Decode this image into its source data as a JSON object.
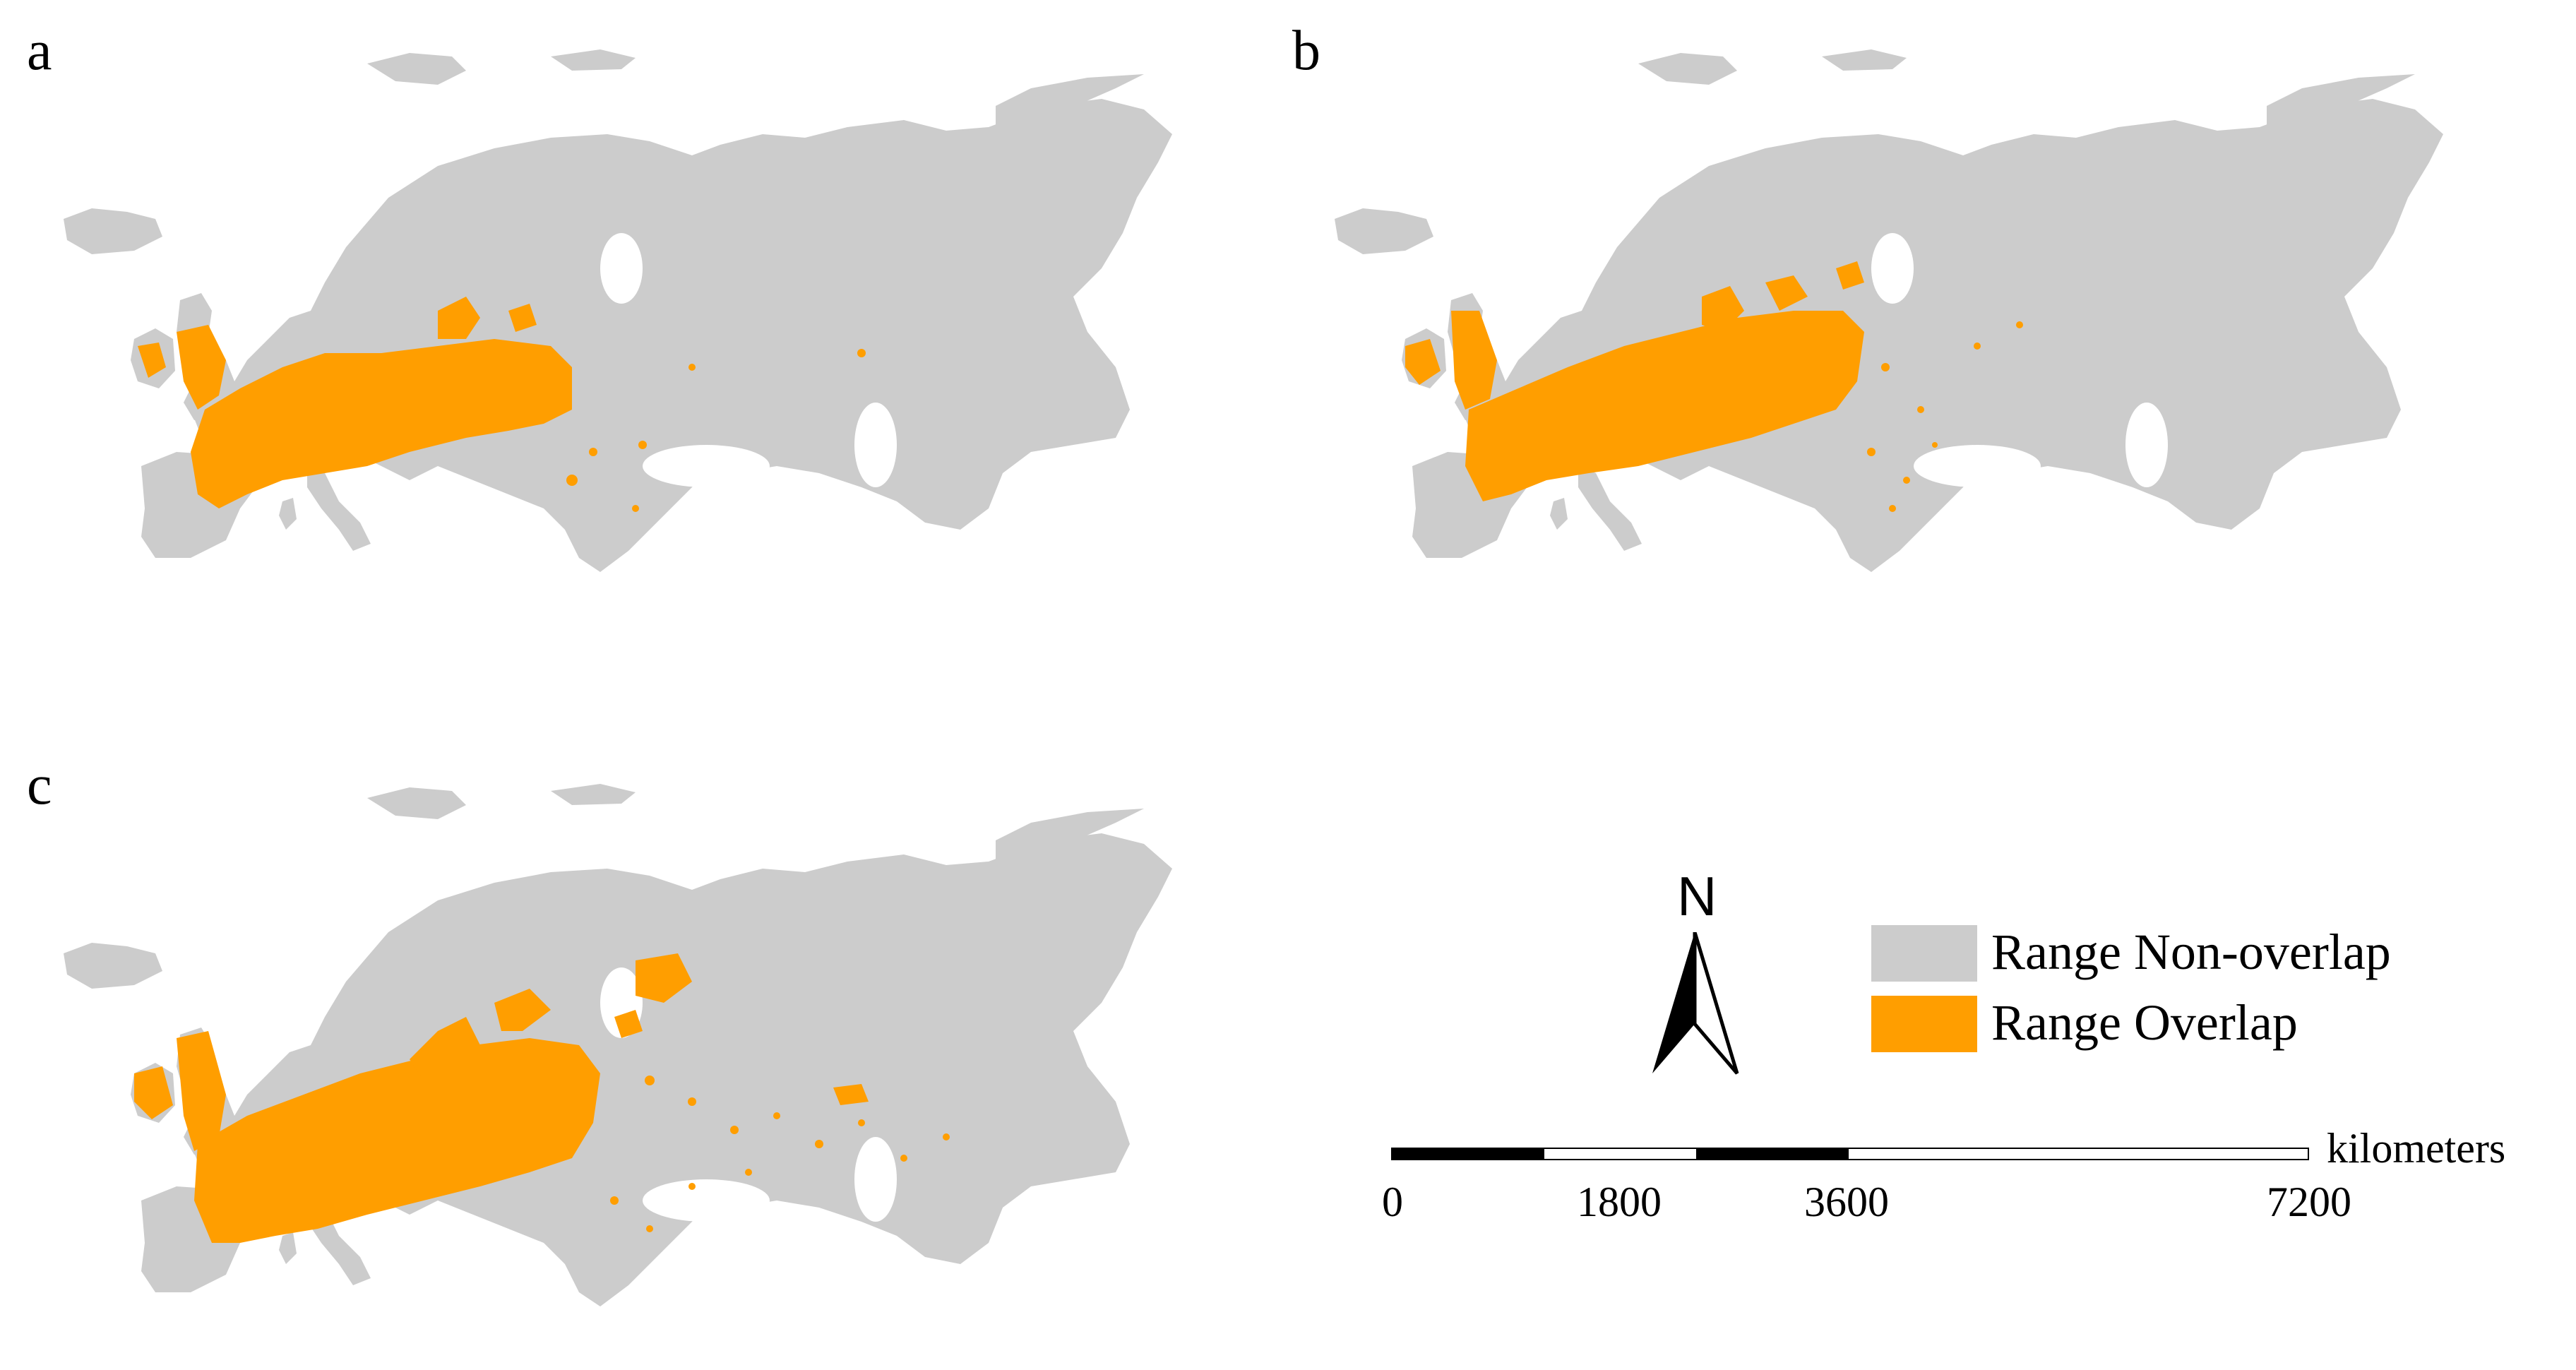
{
  "panels": [
    {
      "label": "a",
      "pattern": "a"
    },
    {
      "label": "b",
      "pattern": "b"
    },
    {
      "label": "c",
      "pattern": "c"
    }
  ],
  "legend": {
    "items": [
      {
        "label": "Range Non-overlap",
        "color": "#cccccc"
      },
      {
        "label": "Range Overlap",
        "color": "#ff9e00"
      }
    ]
  },
  "north_arrow": {
    "letter": "N"
  },
  "scale_bar": {
    "unit": "kilometers",
    "ticks": [
      "0",
      "1800",
      "3600",
      "7200"
    ]
  },
  "colors": {
    "land": "#cccccc",
    "overlap": "#ff9e00"
  }
}
